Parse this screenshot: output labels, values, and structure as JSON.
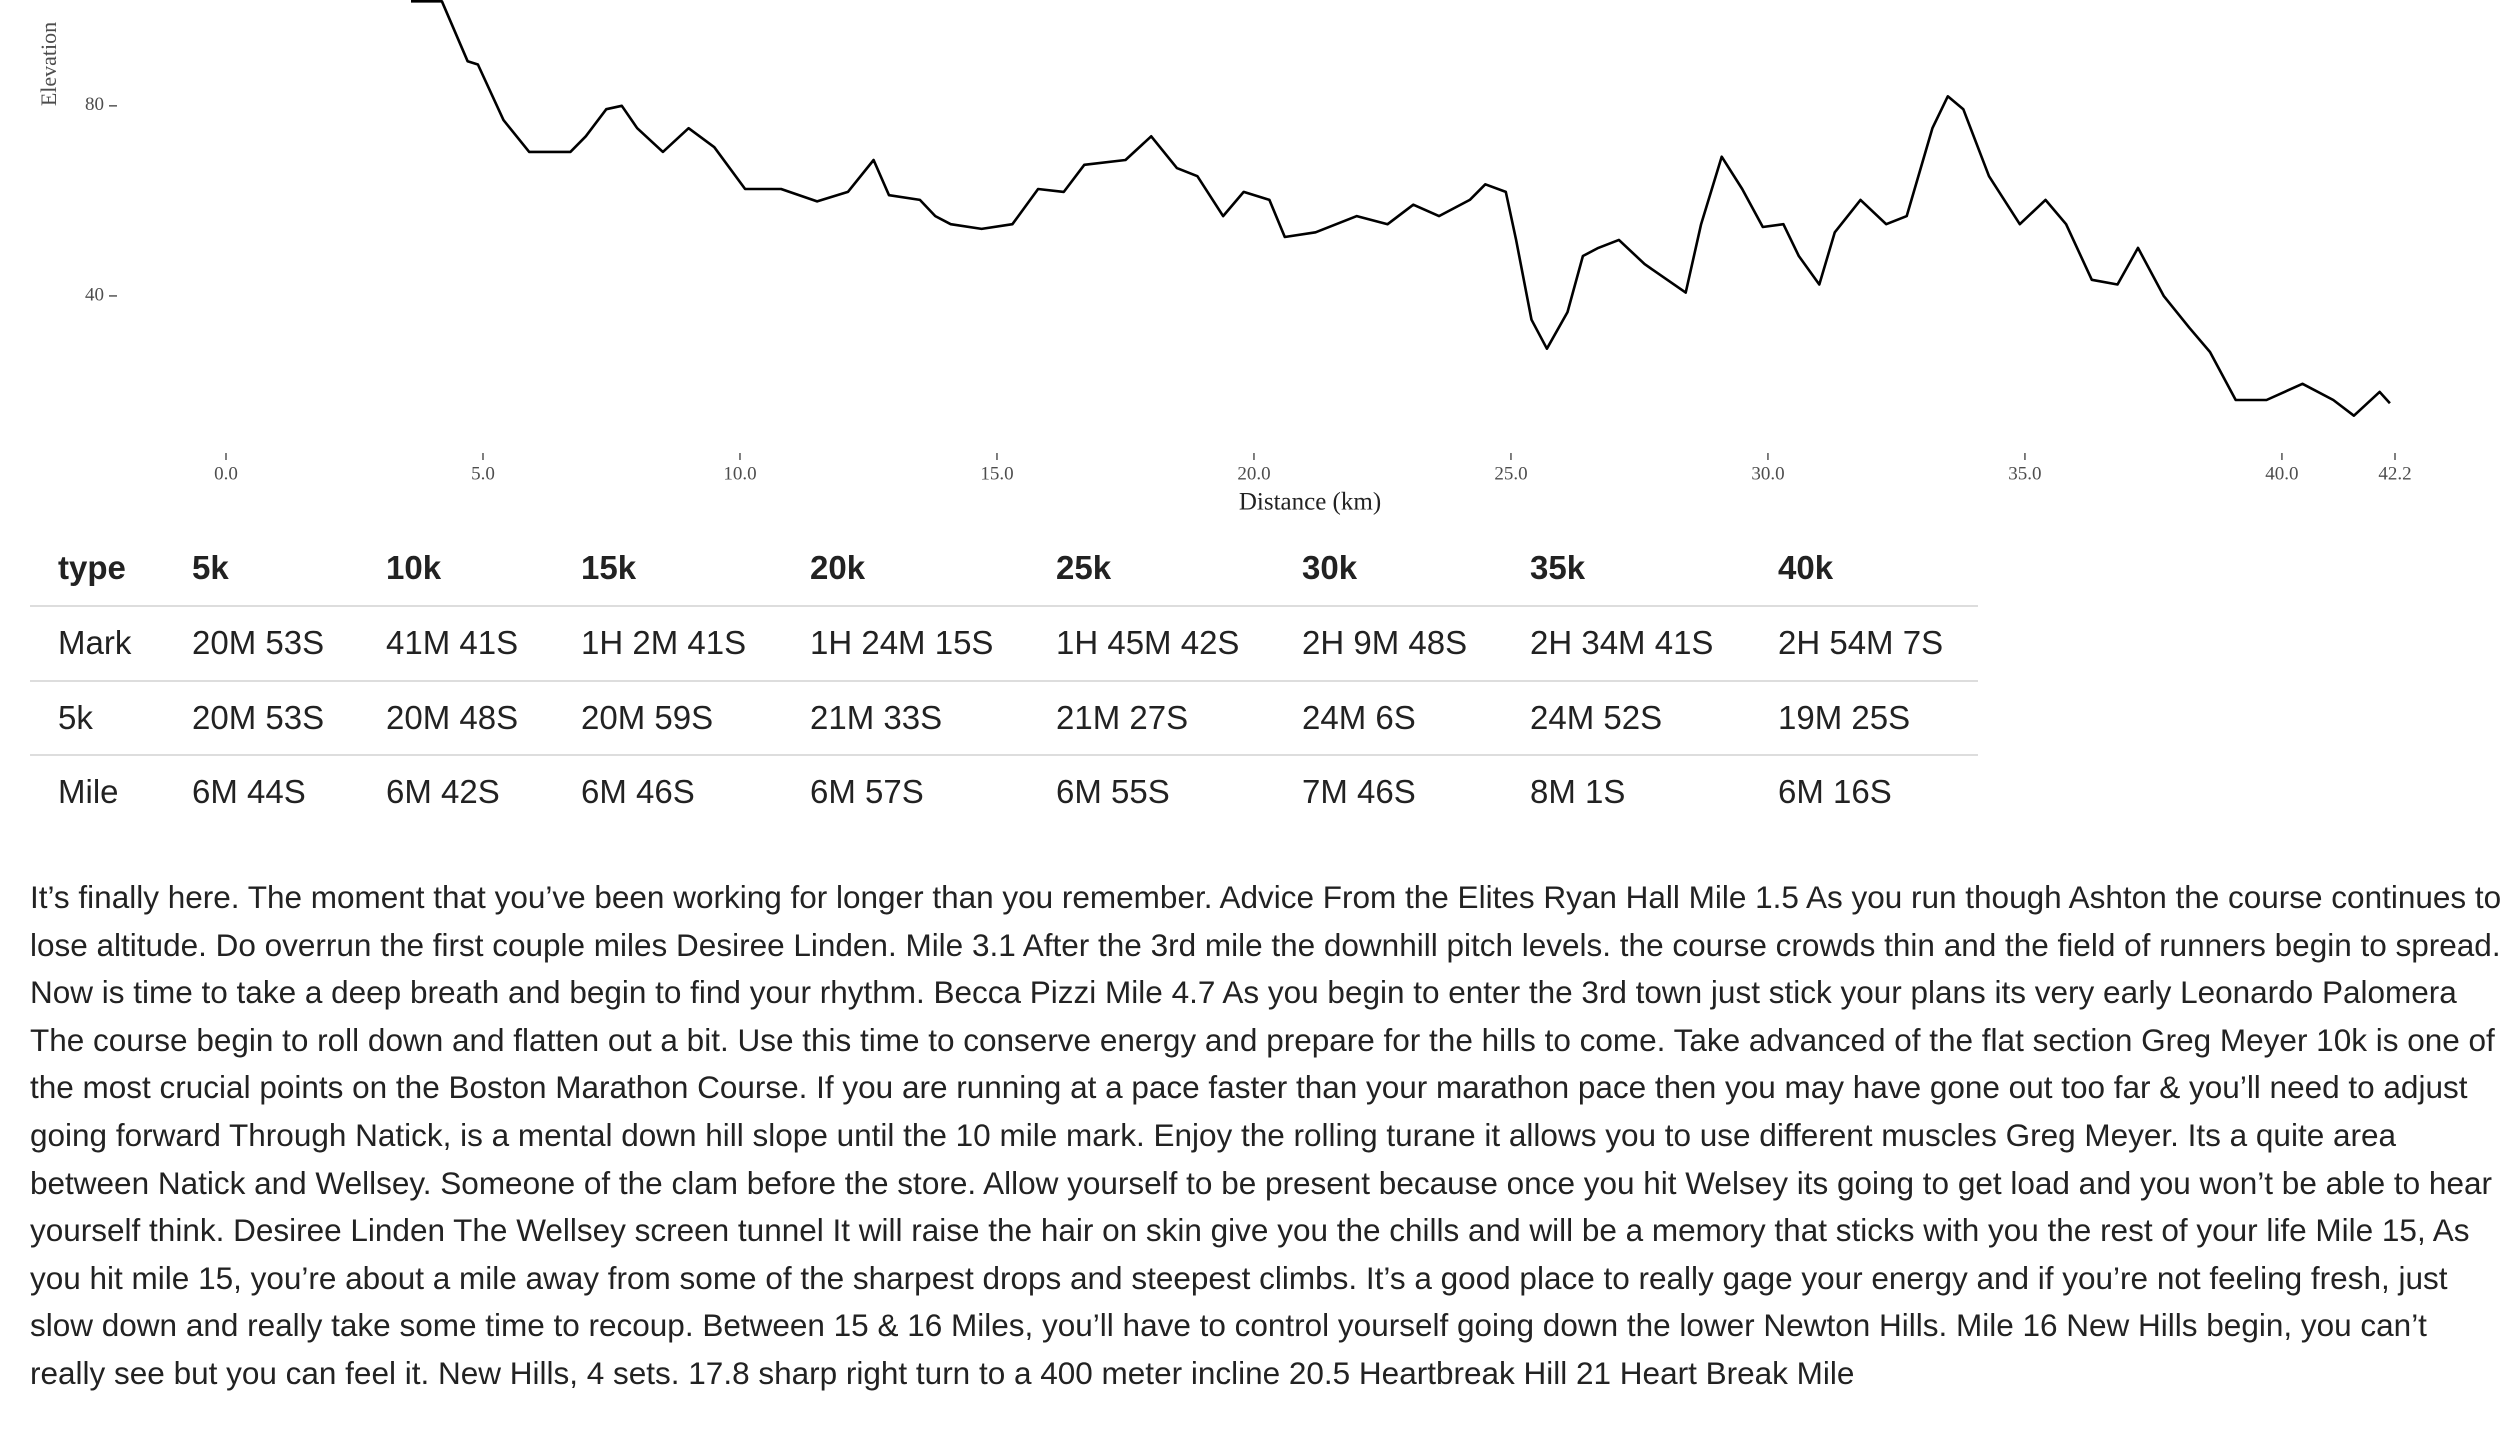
{
  "chart_data": {
    "type": "line",
    "x_label": "Distance (km)",
    "y_label": "Elevation",
    "x": [
      3.6,
      4.2,
      4.7,
      4.9,
      5.4,
      5.9,
      6.7,
      7.0,
      7.4,
      7.7,
      8.0,
      8.5,
      9.0,
      9.5,
      10.1,
      10.8,
      11.5,
      12.1,
      12.6,
      12.9,
      13.5,
      13.8,
      14.1,
      14.7,
      15.3,
      15.8,
      16.3,
      16.7,
      17.5,
      18.0,
      18.5,
      18.9,
      19.4,
      19.8,
      20.3,
      20.6,
      21.2,
      22.0,
      22.6,
      23.1,
      23.6,
      24.2,
      24.5,
      24.9,
      25.1,
      25.4,
      25.7,
      26.1,
      26.4,
      26.7,
      27.1,
      27.6,
      28.4,
      28.7,
      29.1,
      29.5,
      29.9,
      30.3,
      30.6,
      31.0,
      31.3,
      31.8,
      32.3,
      32.7,
      33.2,
      33.5,
      33.8,
      34.3,
      34.9,
      35.4,
      35.8,
      36.3,
      36.8,
      37.2,
      37.7,
      38.2,
      38.6,
      39.1,
      39.7,
      40.4,
      41.0,
      41.4,
      41.9,
      42.1
    ],
    "values": [
      102,
      102,
      89.4,
      88.7,
      77,
      70.3,
      70.3,
      73.6,
      79.3,
      80,
      75.3,
      70.3,
      75.3,
      71.3,
      62.5,
      62.5,
      59.9,
      61.9,
      68.6,
      61.2,
      60.2,
      56.8,
      55.1,
      54.1,
      55.1,
      62.5,
      61.9,
      67.6,
      68.6,
      73.6,
      66.9,
      65.2,
      56.8,
      61.9,
      60.2,
      52.4,
      53.4,
      56.8,
      55.1,
      59.2,
      56.8,
      60.2,
      63.5,
      61.9,
      51.8,
      35,
      28.9,
      36.6,
      48.4,
      50.1,
      51.8,
      46.7,
      40.7,
      55.1,
      69.3,
      62.5,
      54.5,
      55.1,
      48.4,
      42.4,
      53.4,
      60.2,
      55.1,
      56.8,
      75.3,
      82,
      79.3,
      65.2,
      55.1,
      60.2,
      55.1,
      43.4,
      42.4,
      50.1,
      40,
      33.3,
      28.2,
      18.1,
      18.1,
      21.5,
      18.1,
      14.8,
      19.8,
      17.4
    ],
    "color": "#000000",
    "xlim": [
      0,
      42.2
    ],
    "ylim": [
      8,
      102
    ],
    "xticks": [
      {
        "value": 0,
        "label": "0.0"
      },
      {
        "value": 5,
        "label": "5.0"
      },
      {
        "value": 10,
        "label": "10.0"
      },
      {
        "value": 15,
        "label": "15.0"
      },
      {
        "value": 20,
        "label": "20.0"
      },
      {
        "value": 25,
        "label": "25.0"
      },
      {
        "value": 30,
        "label": "30.0"
      },
      {
        "value": 35,
        "label": "35.0"
      },
      {
        "value": 40,
        "label": "40.0"
      },
      42.2
    ],
    "yticks": [
      40,
      80
    ]
  },
  "table": {
    "header": [
      "type",
      "5k",
      "10k",
      "15k",
      "20k",
      "25k",
      "30k",
      "35k",
      "40k"
    ],
    "rows": [
      [
        "Mark",
        "20M 53S",
        "41M 41S",
        "1H 2M 41S",
        "1H 24M 15S",
        "1H 45M 42S",
        "2H 9M 48S",
        "2H 34M 41S",
        "2H 54M 7S"
      ],
      [
        "5k",
        "20M 53S",
        "20M 48S",
        "20M 59S",
        "21M 33S",
        "21M 27S",
        "24M 6S",
        "24M 52S",
        "19M 25S"
      ],
      [
        "Mile",
        "6M 44S",
        "6M 42S",
        "6M 46S",
        "6M 57S",
        "6M 55S",
        "7M 46S",
        "8M 1S",
        "6M 16S"
      ]
    ]
  },
  "text": "It’s finally here. The moment that you’ve been working for longer than you remember. Advice From the Elites Ryan Hall Mile 1.5 As you run though Ashton the course continues to lose altitude. Do overrun the first couple miles Desiree Linden. Mile 3.1 After the 3rd mile the downhill pitch levels. the course crowds thin and the field of runners begin to spread. Now is time to take a deep breath and begin to find your rhythm. Becca Pizzi Mile 4.7 As you begin to enter the 3rd town just stick your plans its very early Leonardo Palomera The course begin to roll down and flatten out a bit. Use this time to conserve energy and prepare for the hills to come. Take advanced of the flat section Greg Meyer 10k is one of the most crucial points on the Boston Marathon Course. If you are running at a pace faster than your marathon pace then you may have gone out too far & you’ll need to adjust going forward Through Natick, is a mental down hill slope until the 10 mile mark. Enjoy the rolling turane it allows you to use different muscles Greg Meyer. Its a quite area between Natick and Wellsey. Someone of the clam before the store. Allow yourself to be present because once you hit Welsey its going to get load and you won’t be able to hear yourself think. Desiree Linden The Wellsey screen tunnel It will raise the hair on skin give you the chills and will be a memory that sticks with you the rest of your life Mile 15, As you hit mile 15, you’re about a mile away from some of the sharpest drops and steepest climbs. It’s a good place to really gage your energy and if you’re not feeling fresh, just slow down and really take some time to recoup. Between 15 & 16 Miles, you’ll have to control yourself going down the lower Newton Hills. Mile 16 New Hills begin, you can’t really see but you can feel it. New Hills, 4 sets. 17.8 sharp right turn to a 400 meter incline 20.5 Heartbreak Hill 21 Heart Break Mile"
}
